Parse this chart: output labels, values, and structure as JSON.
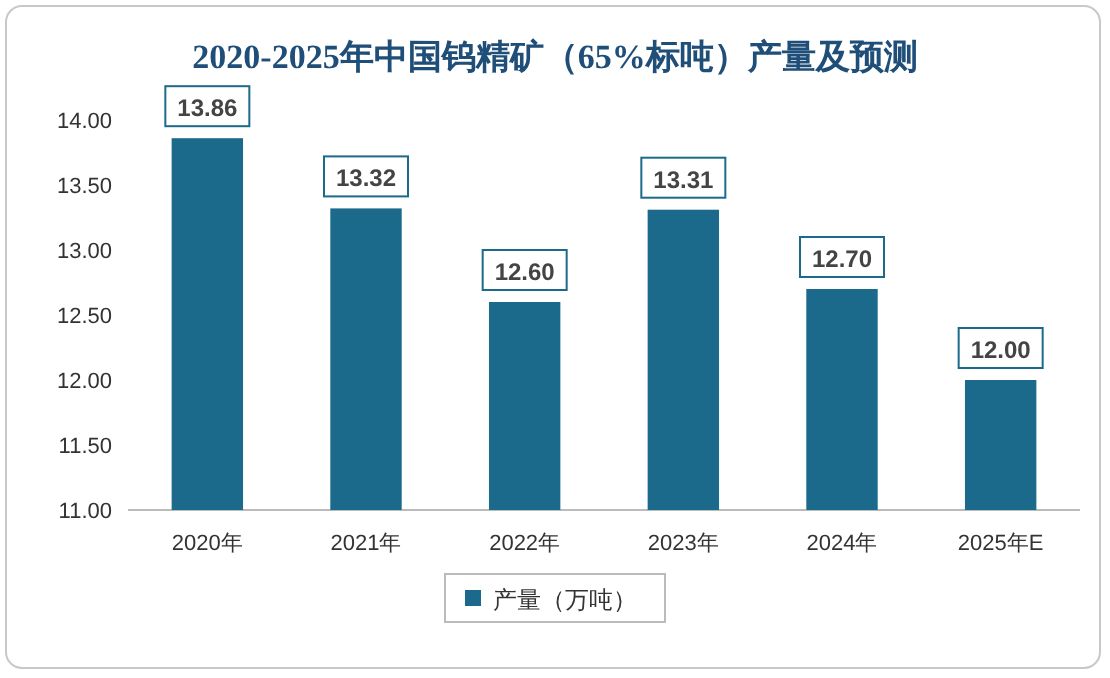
{
  "chart_data": {
    "type": "bar",
    "title": "2020-2025年中国钨精矿（65%标吨）产量及预测",
    "categories": [
      "2020年",
      "2021年",
      "2022年",
      "2023年",
      "2024年",
      "2025年E"
    ],
    "series": [
      {
        "name": "产量（万吨）",
        "color": "#1b6a8c",
        "values": [
          13.86,
          13.32,
          12.6,
          13.31,
          12.7,
          12.0
        ],
        "value_labels": [
          "13.86",
          "13.32",
          "12.60",
          "13.31",
          "12.70",
          "12.00"
        ]
      }
    ],
    "ylim": [
      11,
      14
    ],
    "yticks": [
      {
        "value": 11,
        "label": "11.00"
      },
      {
        "value": 11.5,
        "label": "11.50"
      },
      {
        "value": 12,
        "label": "12.00"
      },
      {
        "value": 12.5,
        "label": "12.50"
      },
      {
        "value": 13,
        "label": "13.00"
      },
      {
        "value": 13.5,
        "label": "13.50"
      },
      {
        "value": 14,
        "label": "14.00"
      }
    ],
    "grid": false,
    "legend": "bottom"
  }
}
